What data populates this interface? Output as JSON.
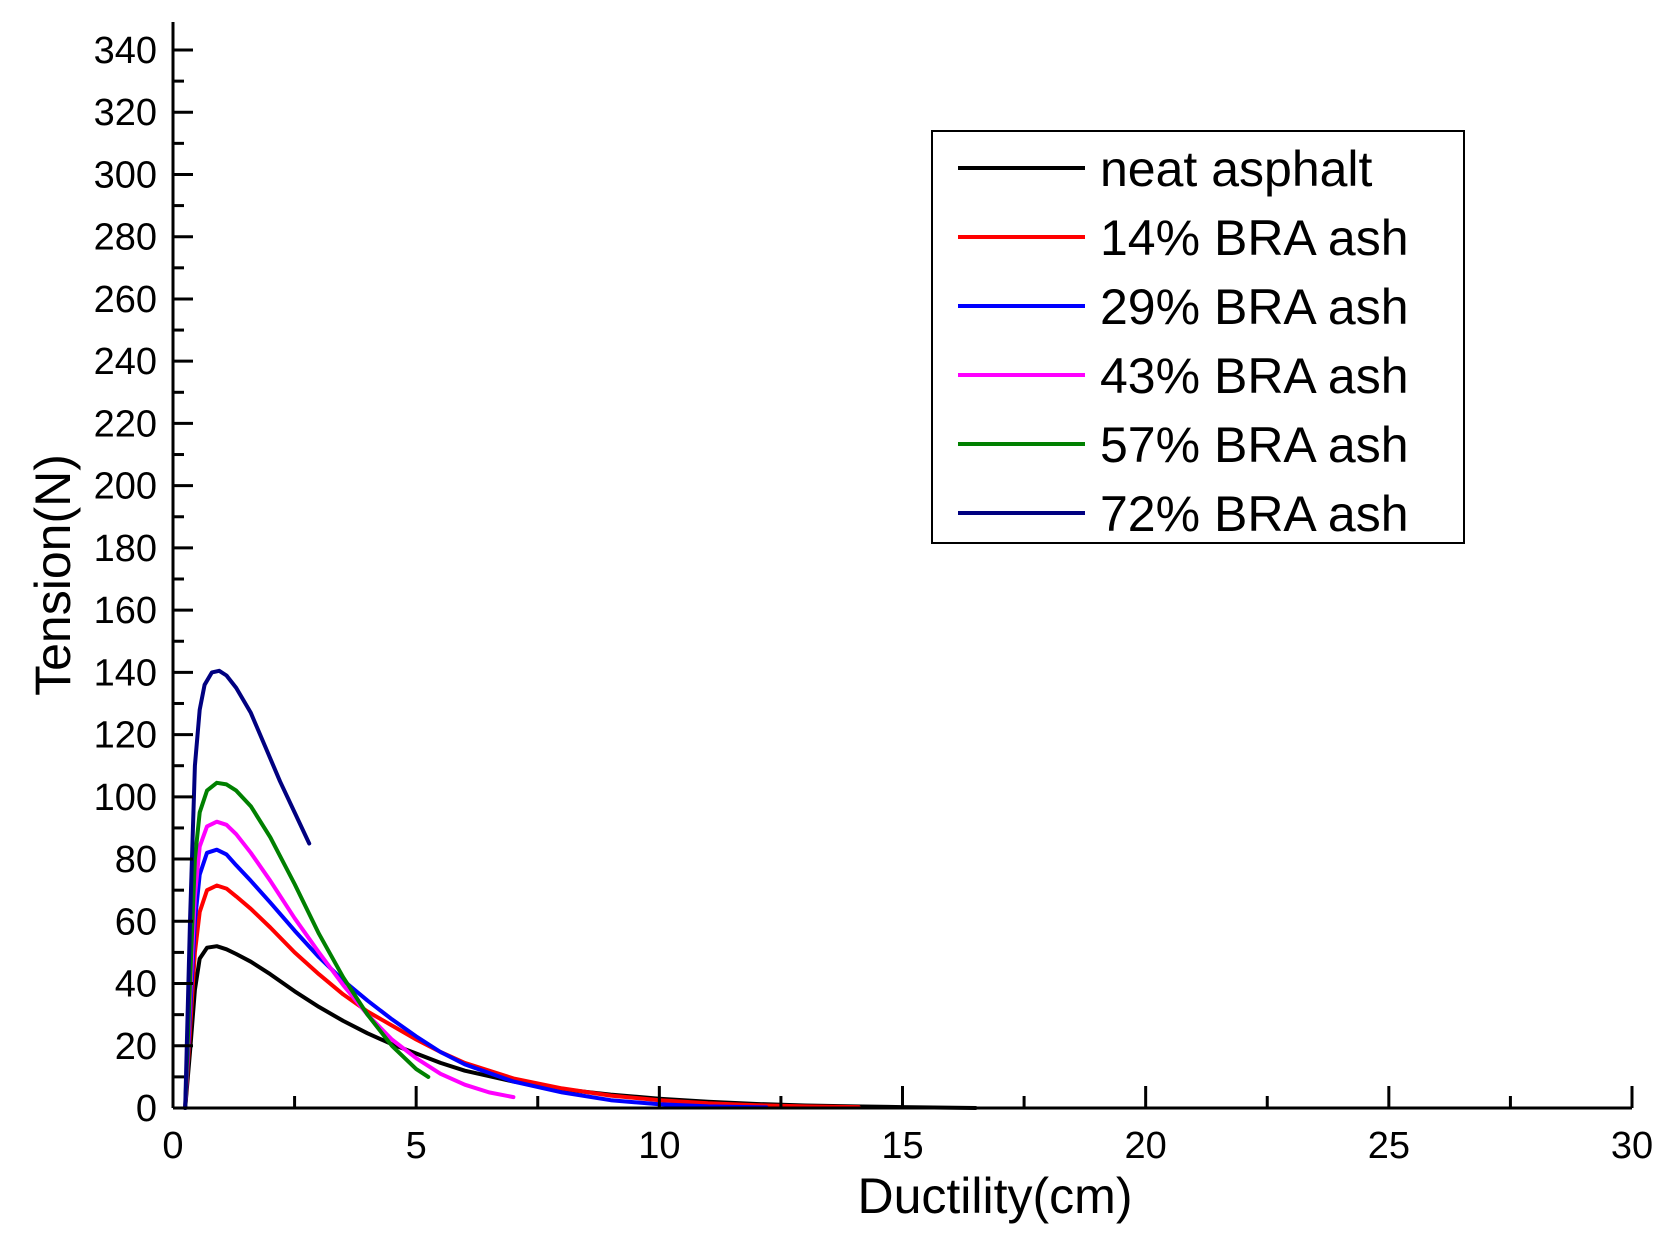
{
  "chart_data": {
    "type": "line",
    "title": "",
    "xlabel": "Ductility(cm)",
    "ylabel": "Tension(N)",
    "xlim": [
      0,
      30
    ],
    "ylim": [
      0,
      340
    ],
    "xticks": [
      0,
      5,
      10,
      15,
      20,
      25,
      30
    ],
    "yticks": [
      0,
      20,
      40,
      60,
      80,
      100,
      120,
      140,
      160,
      180,
      200,
      220,
      240,
      260,
      280,
      300,
      320,
      340
    ],
    "grid": false,
    "legend_position": "top-right",
    "series": [
      {
        "name": "neat asphalt",
        "color": "#000000",
        "x": [
          0.25,
          0.35,
          0.45,
          0.55,
          0.7,
          0.9,
          1.1,
          1.3,
          1.6,
          2,
          2.5,
          3,
          3.5,
          4,
          4.5,
          5,
          5.5,
          6,
          7,
          8,
          9,
          10,
          11,
          12,
          13,
          14,
          15,
          16.5
        ],
        "y": [
          0,
          18,
          38,
          48,
          51.5,
          52,
          51,
          49.5,
          47,
          43,
          37.5,
          32.5,
          28,
          24,
          20.5,
          17.5,
          14.5,
          12,
          8.5,
          6,
          4.3,
          3,
          2,
          1.3,
          0.8,
          0.5,
          0.3,
          0
        ]
      },
      {
        "name": "14% BRA ash",
        "color": "#ff0000",
        "x": [
          0.25,
          0.35,
          0.45,
          0.55,
          0.7,
          0.9,
          1.1,
          1.3,
          1.6,
          2,
          2.5,
          3,
          3.5,
          4,
          4.5,
          5,
          5.5,
          6,
          7,
          8,
          9,
          10,
          11,
          12,
          13,
          14.1
        ],
        "y": [
          0,
          25,
          50,
          63,
          70,
          71.5,
          70.5,
          68,
          64,
          58,
          50,
          43,
          36.5,
          31,
          26.5,
          22,
          18,
          14.5,
          9.5,
          6.3,
          4,
          2.5,
          1.5,
          0.9,
          0.5,
          0.3
        ]
      },
      {
        "name": "29% BRA ash",
        "color": "#0000ff",
        "x": [
          0.25,
          0.35,
          0.45,
          0.55,
          0.7,
          0.9,
          1.1,
          1.3,
          1.6,
          2,
          2.5,
          3,
          3.5,
          4,
          4.5,
          5,
          5.5,
          6,
          7,
          8,
          9,
          10,
          11,
          12.2
        ],
        "y": [
          0,
          30,
          60,
          75,
          82,
          83,
          81.5,
          78,
          73,
          66,
          57,
          48.5,
          41,
          34.5,
          28.5,
          23,
          18,
          14,
          8.5,
          5,
          2.5,
          1.2,
          0.5,
          0.2
        ]
      },
      {
        "name": "43% BRA ash",
        "color": "#ff00ff",
        "x": [
          0.25,
          0.35,
          0.45,
          0.55,
          0.7,
          0.9,
          1.1,
          1.3,
          1.6,
          2,
          2.5,
          3,
          3.5,
          4,
          4.5,
          5,
          5.5,
          6,
          6.5,
          7
        ],
        "y": [
          0,
          35,
          68,
          84,
          90.5,
          92,
          91,
          88,
          82,
          73,
          61,
          50,
          39.5,
          30,
          22,
          16,
          11,
          7.5,
          5,
          3.5
        ]
      },
      {
        "name": "57% BRA ash",
        "color": "#008000",
        "x": [
          0.25,
          0.35,
          0.45,
          0.55,
          0.7,
          0.9,
          1.1,
          1.3,
          1.6,
          2,
          2.5,
          3,
          3.5,
          4,
          4.5,
          5,
          5.25
        ],
        "y": [
          0,
          40,
          80,
          95,
          102,
          104.5,
          104,
          102,
          97,
          87,
          72,
          56,
          42,
          30,
          20,
          12.5,
          10
        ]
      },
      {
        "name": "72% BRA ash",
        "color": "#000080",
        "x": [
          0.25,
          0.35,
          0.45,
          0.55,
          0.65,
          0.8,
          0.95,
          1.1,
          1.3,
          1.6,
          1.9,
          2.2,
          2.5,
          2.8
        ],
        "y": [
          0,
          60,
          110,
          128,
          136,
          140,
          140.5,
          139,
          135,
          127,
          116,
          105,
          95,
          85
        ]
      }
    ]
  }
}
